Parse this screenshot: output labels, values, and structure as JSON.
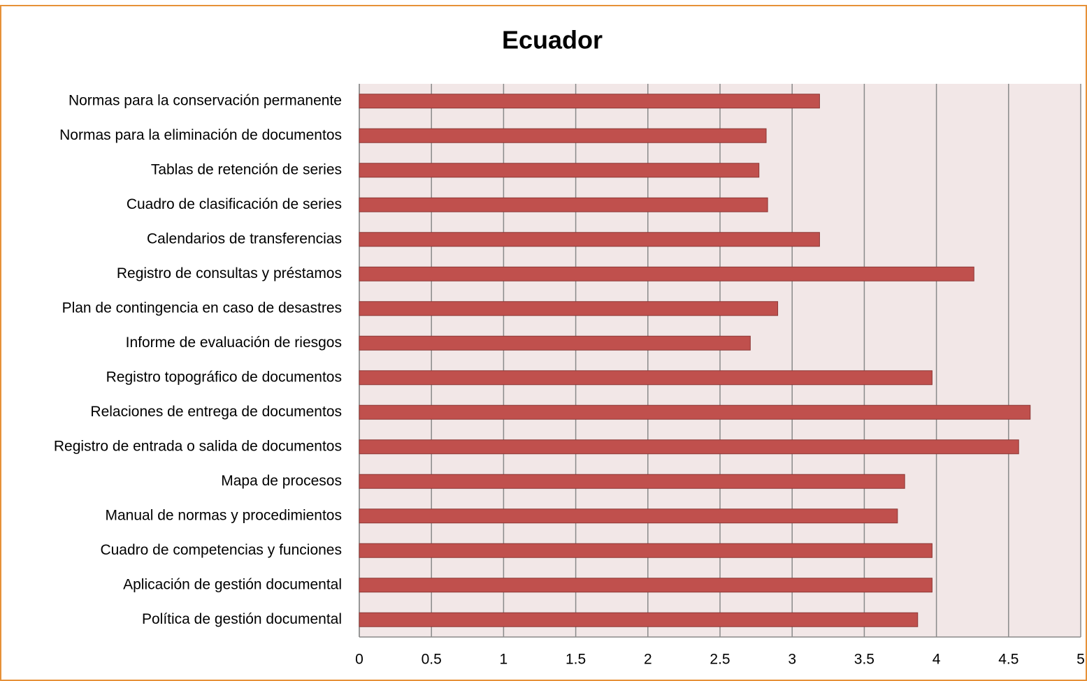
{
  "chart_data": {
    "type": "barh",
    "title": "Ecuador",
    "categories": [
      "Normas para la conservación permanente",
      "Normas para la eliminación de documentos",
      "Tablas de retención de series",
      "Cuadro de clasificación de series",
      "Calendarios de transferencias",
      "Registro de consultas y préstamos",
      "Plan de contingencia en caso de desastres",
      "Informe de evaluación de riesgos",
      "Registro topográfico de documentos",
      "Relaciones de entrega de documentos",
      "Registro de entrada o salida de documentos",
      "Mapa de procesos",
      "Manual de normas y procedimientos",
      "Cuadro de competencias y funciones",
      "Aplicación de gestión documental",
      "Política de gestión documental"
    ],
    "values": [
      3.19,
      2.82,
      2.77,
      2.83,
      3.19,
      4.26,
      2.9,
      2.71,
      3.97,
      4.65,
      4.57,
      3.78,
      3.73,
      3.97,
      3.97,
      3.87
    ],
    "color": "#c0504d",
    "xlim": [
      0,
      5
    ],
    "xticks": [
      0,
      0.5,
      1,
      1.5,
      2,
      2.5,
      3,
      3.5,
      4,
      4.5,
      5
    ],
    "grid": true
  }
}
